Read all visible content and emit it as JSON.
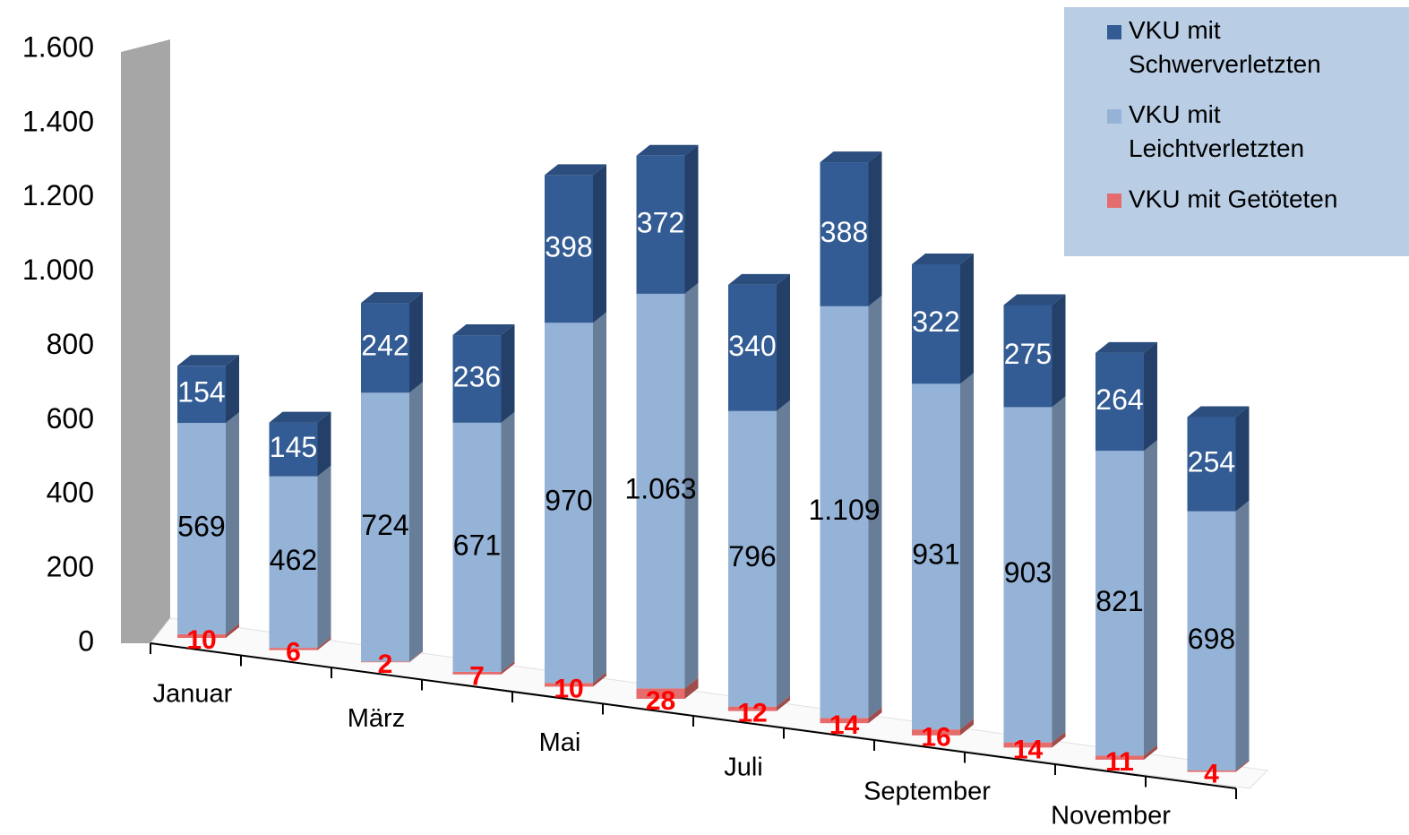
{
  "chart_data": {
    "type": "bar3d_stacked",
    "categories": [
      "Januar",
      null,
      "März",
      null,
      "Mai",
      null,
      "Juli",
      null,
      "September",
      null,
      "November",
      null
    ],
    "series": [
      {
        "name": "VKU mit Getöteten",
        "color": "#e46c6c",
        "label_color": "#ff0000",
        "values": [
          10,
          6,
          2,
          7,
          10,
          28,
          12,
          14,
          16,
          14,
          11,
          4
        ]
      },
      {
        "name": "VKU mit Leichtverletzten",
        "color": "#95b3d7",
        "label_color": "#000000",
        "values": [
          569,
          462,
          724,
          671,
          970,
          1063,
          796,
          1109,
          931,
          903,
          821,
          698
        ],
        "value_labels": [
          "569",
          "462",
          "724",
          "671",
          "970",
          "1.063",
          "796",
          "1.109",
          "931",
          "903",
          "821",
          "698"
        ]
      },
      {
        "name": "VKU mit Schwerverletzten",
        "color": "#335c94",
        "label_color": "#ffffff",
        "values": [
          154,
          145,
          242,
          236,
          398,
          372,
          340,
          388,
          322,
          275,
          264,
          254
        ]
      }
    ],
    "ylim": [
      0,
      1600
    ],
    "yticks": [
      0,
      200,
      400,
      600,
      800,
      {
        "value": 1000,
        "label": "1.000"
      },
      {
        "value": 1200,
        "label": "1.200"
      },
      {
        "value": 1400,
        "label": "1.400"
      },
      {
        "value": 1600,
        "label": "1.600"
      }
    ],
    "legend": "top-right"
  }
}
